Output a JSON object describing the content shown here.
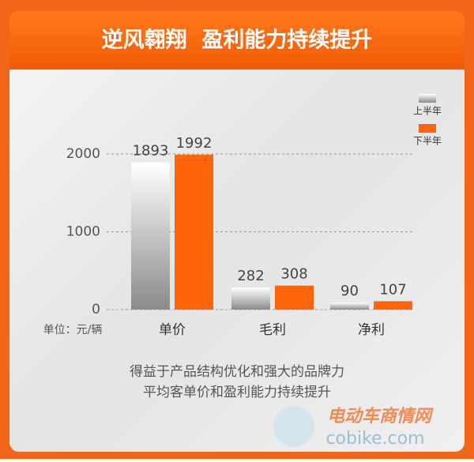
{
  "chart_data": {
    "type": "bar",
    "title": "逆风翱翔  盈利能力持续提升",
    "categories": [
      "单价",
      "毛利",
      "净利"
    ],
    "series": [
      {
        "name": "上半年",
        "color": "#8a8a8a",
        "values": [
          1893,
          282,
          90
        ]
      },
      {
        "name": "下半年",
        "color": "#ff6508",
        "values": [
          1992,
          308,
          107
        ]
      }
    ],
    "ylim": [
      0,
      2000
    ],
    "yticks": [
      0,
      1000,
      2000
    ],
    "grid": true,
    "unit_label": "单位：元/辆",
    "footer": [
      "得益于产品结构优化和强大的品牌力",
      "平均客单价和盈利能力持续提升"
    ],
    "watermark": [
      "电动车商情网",
      "cobike.com"
    ]
  }
}
